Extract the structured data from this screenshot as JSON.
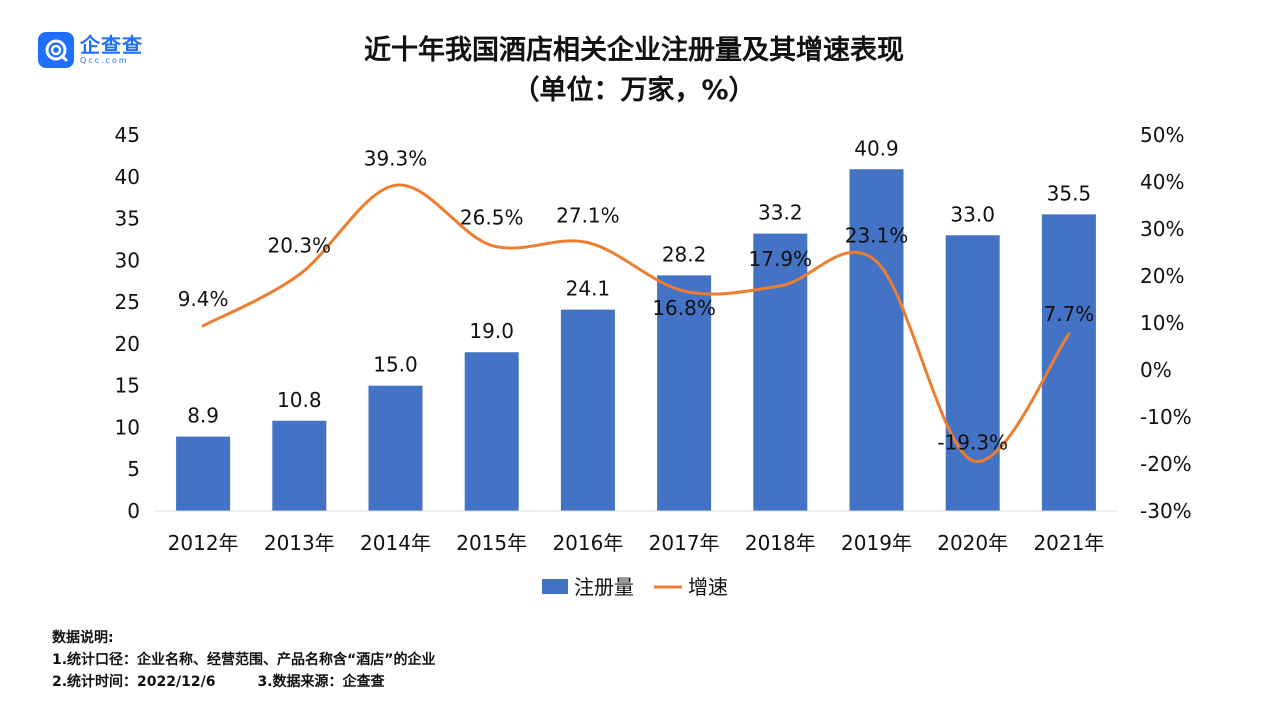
{
  "logo": {
    "name": "企查查",
    "sub": "Qcc.com"
  },
  "chart_data": {
    "type": "bar",
    "title": "近十年我国酒店相关企业注册量及其增速表现",
    "subtitle": "（单位：万家，%）",
    "categories": [
      "2012年",
      "2013年",
      "2014年",
      "2015年",
      "2016年",
      "2017年",
      "2018年",
      "2019年",
      "2020年",
      "2021年"
    ],
    "series": [
      {
        "name": "注册量",
        "type": "bar",
        "axis": "left",
        "color": "#4472c4",
        "values": [
          8.9,
          10.8,
          15.0,
          19.0,
          24.1,
          28.2,
          33.2,
          40.9,
          33.0,
          35.5
        ],
        "labels": [
          "8.9",
          "10.8",
          "15.0",
          "19.0",
          "24.1",
          "28.2",
          "33.2",
          "40.9",
          "33.0",
          "35.5"
        ]
      },
      {
        "name": "增速",
        "type": "line",
        "axis": "right",
        "color": "#ed7d31",
        "values": [
          9.4,
          20.3,
          39.3,
          26.5,
          27.1,
          16.8,
          17.9,
          23.1,
          -19.3,
          7.7
        ],
        "labels": [
          "9.4%",
          "20.3%",
          "39.3%",
          "26.5%",
          "27.1%",
          "16.8%",
          "17.9%",
          "23.1%",
          "-19.3%",
          "7.7%"
        ]
      }
    ],
    "ylim": [
      0,
      45
    ],
    "yticks": [
      "0",
      "5",
      "10",
      "15",
      "20",
      "25",
      "30",
      "35",
      "40",
      "45"
    ],
    "y2lim": [
      -30,
      50
    ],
    "y2ticks": [
      "-30%",
      "-20%",
      "-10%",
      "0%",
      "10%",
      "20%",
      "30%",
      "40%",
      "50%"
    ],
    "grid": false,
    "legend": "bottom"
  },
  "notes": {
    "heading": "数据说明:",
    "line1": "1.统计口径：企业名称、经营范围、产品名称含“酒店”的企业",
    "line2a": "2.统计时间：2022/12/6",
    "line2b": "3.数据来源：企查查"
  }
}
